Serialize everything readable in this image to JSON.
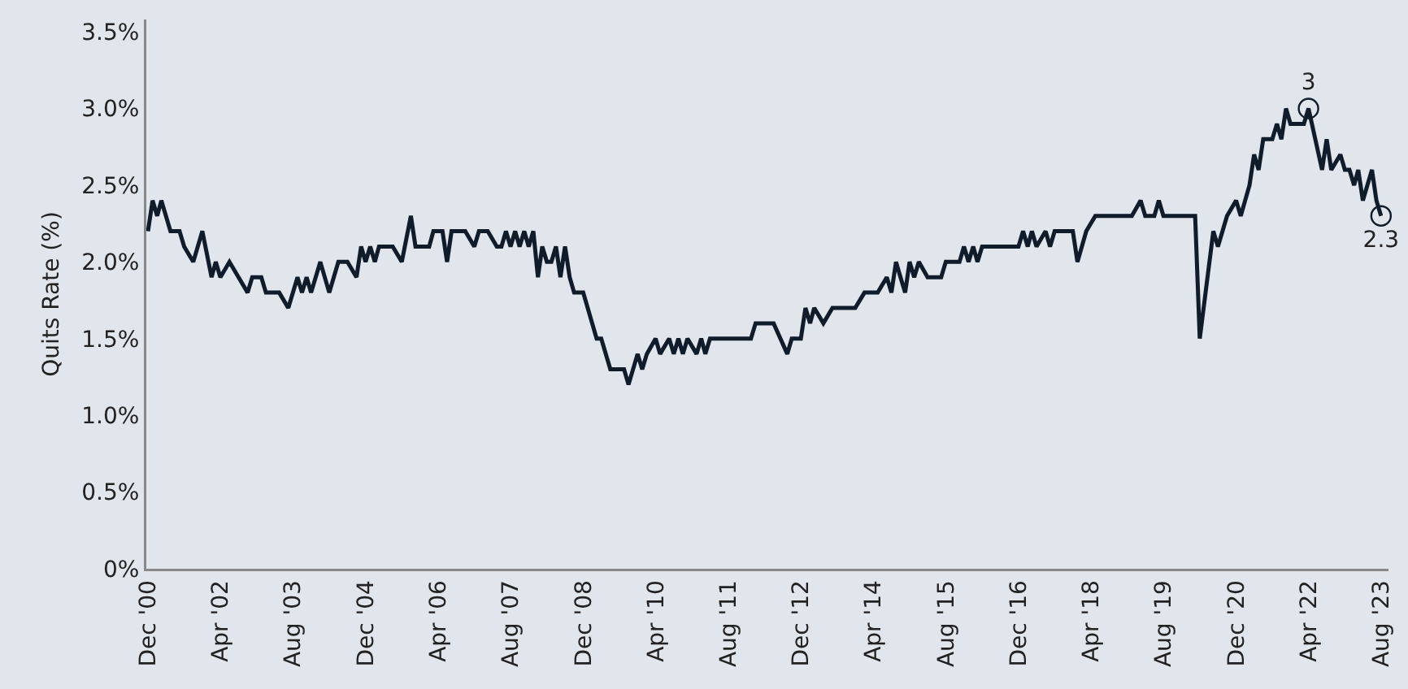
{
  "chart_data": {
    "type": "line",
    "ylabel": "Quits Rate (%)",
    "xlim": [
      "2000-11-20",
      "2023-09-20"
    ],
    "ylim": [
      0,
      3.58
    ],
    "yticks": [
      {
        "value": 0,
        "label": "0%"
      },
      {
        "value": 0.5,
        "label": "0.5%"
      },
      {
        "value": 1,
        "label": "1.0%"
      },
      {
        "value": 1.5,
        "label": "1.5%"
      },
      {
        "value": 2,
        "label": "2.0%"
      },
      {
        "value": 2.5,
        "label": "2.5%"
      },
      {
        "value": 3,
        "label": "3.0%"
      },
      {
        "value": 3.5,
        "label": "3.5%"
      }
    ],
    "xticks": [
      {
        "value": "2000-12",
        "label": "Dec '00"
      },
      {
        "value": "2002-04",
        "label": "Apr '02"
      },
      {
        "value": "2003-08",
        "label": "Aug '03"
      },
      {
        "value": "2004-12",
        "label": "Dec '04"
      },
      {
        "value": "2006-04",
        "label": "Apr '06"
      },
      {
        "value": "2007-08",
        "label": "Aug '07"
      },
      {
        "value": "2008-12",
        "label": "Dec '08"
      },
      {
        "value": "2010-04",
        "label": "Apr '10"
      },
      {
        "value": "2011-08",
        "label": "Aug '11"
      },
      {
        "value": "2012-12",
        "label": "Dec '12"
      },
      {
        "value": "2014-04",
        "label": "Apr '14"
      },
      {
        "value": "2015-08",
        "label": "Aug '15"
      },
      {
        "value": "2016-12",
        "label": "Dec '16"
      },
      {
        "value": "2018-04",
        "label": "Apr '18"
      },
      {
        "value": "2019-08",
        "label": "Aug '19"
      },
      {
        "value": "2020-12",
        "label": "Dec '20"
      },
      {
        "value": "2022-04",
        "label": "Apr '22"
      },
      {
        "value": "2023-08",
        "label": "Aug '23"
      }
    ],
    "grid": false,
    "line_style": "solid",
    "series": [
      {
        "color": "#111c2b",
        "x": [
          "2000-12",
          "2001-01",
          "2001-02",
          "2001-03",
          "2001-05",
          "2001-07",
          "2001-08",
          "2001-10",
          "2001-12",
          "2002-02",
          "2002-03",
          "2002-04",
          "2002-06",
          "2002-08",
          "2002-10",
          "2002-11",
          "2003-01",
          "2003-02",
          "2003-05",
          "2003-07",
          "2003-09",
          "2003-10",
          "2003-11",
          "2003-12",
          "2004-02",
          "2004-04",
          "2004-06",
          "2004-08",
          "2004-10",
          "2004-11",
          "2004-12",
          "2005-01",
          "2005-02",
          "2005-03",
          "2005-06",
          "2005-08",
          "2005-10",
          "2005-11",
          "2006-02",
          "2006-03",
          "2006-05",
          "2006-06",
          "2006-07",
          "2006-10",
          "2006-12",
          "2007-01",
          "2007-03",
          "2007-05",
          "2007-06",
          "2007-07",
          "2007-08",
          "2007-09",
          "2007-10",
          "2007-11",
          "2007-12",
          "2008-01",
          "2008-02",
          "2008-03",
          "2008-04",
          "2008-05",
          "2008-06",
          "2008-07",
          "2008-08",
          "2008-09",
          "2008-10",
          "2008-12",
          "2009-03",
          "2009-04",
          "2009-06",
          "2009-09",
          "2009-10",
          "2009-12",
          "2010-01",
          "2010-02",
          "2010-04",
          "2010-05",
          "2010-07",
          "2010-08",
          "2010-09",
          "2010-10",
          "2010-11",
          "2011-01",
          "2011-02",
          "2011-03",
          "2011-04",
          "2012-01",
          "2012-02",
          "2012-06",
          "2012-09",
          "2012-10",
          "2012-12",
          "2013-01",
          "2013-02",
          "2013-03",
          "2013-05",
          "2013-07",
          "2013-12",
          "2014-02",
          "2014-05",
          "2014-07",
          "2014-08",
          "2014-09",
          "2014-10",
          "2014-11",
          "2014-12",
          "2015-01",
          "2015-02",
          "2015-04",
          "2015-07",
          "2015-08",
          "2015-11",
          "2015-12",
          "2016-01",
          "2016-02",
          "2016-03",
          "2016-04",
          "2016-12",
          "2017-01",
          "2017-02",
          "2017-03",
          "2017-04",
          "2017-06",
          "2017-07",
          "2017-08",
          "2017-12",
          "2018-01",
          "2018-03",
          "2018-05",
          "2019-01",
          "2019-03",
          "2019-04",
          "2019-06",
          "2019-07",
          "2019-08",
          "2020-03",
          "2020-04",
          "2020-07",
          "2020-08",
          "2020-10",
          "2020-12",
          "2021-01",
          "2021-03",
          "2021-04",
          "2021-05",
          "2021-06",
          "2021-08",
          "2021-09",
          "2021-10",
          "2021-11",
          "2021-12",
          "2022-03",
          "2022-04",
          "2022-07",
          "2022-08",
          "2022-09",
          "2022-11",
          "2022-12",
          "2023-01",
          "2023-02",
          "2023-03",
          "2023-04",
          "2023-06",
          "2023-07",
          "2023-08"
        ],
        "values": [
          2.2,
          2.4,
          2.3,
          2.4,
          2.2,
          2.2,
          2.1,
          2.0,
          2.2,
          1.9,
          2.0,
          1.9,
          2.0,
          1.9,
          1.8,
          1.9,
          1.9,
          1.8,
          1.8,
          1.7,
          1.9,
          1.8,
          1.9,
          1.8,
          2.0,
          1.8,
          2.0,
          2.0,
          1.9,
          2.1,
          2.0,
          2.1,
          2.0,
          2.1,
          2.1,
          2.0,
          2.3,
          2.1,
          2.1,
          2.2,
          2.2,
          2.0,
          2.2,
          2.2,
          2.1,
          2.2,
          2.2,
          2.1,
          2.1,
          2.2,
          2.1,
          2.2,
          2.1,
          2.2,
          2.1,
          2.2,
          1.9,
          2.1,
          2.0,
          2.0,
          2.1,
          1.9,
          2.1,
          1.9,
          1.8,
          1.8,
          1.5,
          1.5,
          1.3,
          1.3,
          1.2,
          1.4,
          1.3,
          1.4,
          1.5,
          1.4,
          1.5,
          1.4,
          1.5,
          1.4,
          1.5,
          1.4,
          1.5,
          1.4,
          1.5,
          1.5,
          1.6,
          1.6,
          1.4,
          1.5,
          1.5,
          1.7,
          1.6,
          1.7,
          1.6,
          1.7,
          1.7,
          1.8,
          1.8,
          1.9,
          1.8,
          2.0,
          1.9,
          1.8,
          2.0,
          1.9,
          2.0,
          1.9,
          1.9,
          2.0,
          2.0,
          2.1,
          2.0,
          2.1,
          2.0,
          2.1,
          2.1,
          2.2,
          2.1,
          2.2,
          2.1,
          2.2,
          2.1,
          2.2,
          2.2,
          2.0,
          2.2,
          2.3,
          2.3,
          2.4,
          2.3,
          2.3,
          2.4,
          2.3,
          2.3,
          1.5,
          2.2,
          2.1,
          2.3,
          2.4,
          2.3,
          2.5,
          2.7,
          2.6,
          2.8,
          2.8,
          2.9,
          2.8,
          3.0,
          2.9,
          2.9,
          3.0,
          2.6,
          2.8,
          2.6,
          2.7,
          2.6,
          2.6,
          2.5,
          2.6,
          2.4,
          2.6,
          2.4,
          2.3
        ]
      },
      {
        "type": "scatter",
        "color": "#111c2b",
        "marker": "circle",
        "x": [
          "2022-04",
          "2023-08"
        ],
        "values": [
          3.0,
          2.3
        ],
        "value_labels": [
          "3",
          "2.3"
        ]
      }
    ]
  }
}
